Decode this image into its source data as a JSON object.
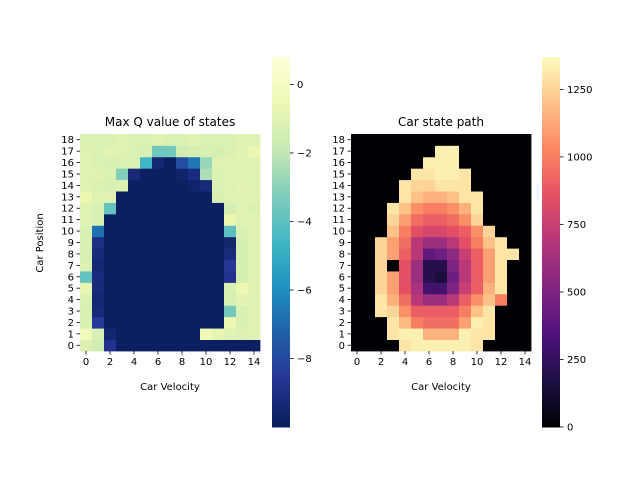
{
  "chart_data": [
    {
      "type": "heatmap",
      "title": "Max Q value of states",
      "xlabel": "Car Velocity",
      "ylabel": "Car Position",
      "x_ticks": [
        "0",
        "2",
        "4",
        "6",
        "8",
        "10",
        "12",
        "14"
      ],
      "y_ticks": [
        "0",
        "1",
        "2",
        "3",
        "4",
        "5",
        "6",
        "7",
        "8",
        "9",
        "10",
        "11",
        "12",
        "13",
        "14",
        "15",
        "16",
        "17",
        "18"
      ],
      "columns": 15,
      "rows": 19,
      "colormap": "YlGnBu",
      "colorbar": {
        "range": [
          -10,
          0.8
        ],
        "ticks": [
          0,
          -2,
          -4,
          -6,
          -8
        ],
        "tick_labels": [
          "0",
          "−2",
          "−4",
          "−6",
          "−8"
        ]
      },
      "values_note_row_order": "row index 0 = position 0 (bottom)",
      "values": [
        [
          -1.2,
          -1.5,
          -8.8,
          -9.8,
          -9.8,
          -9.8,
          -9.8,
          -9.8,
          -9.8,
          -9.8,
          -9.8,
          -9.8,
          -9.8,
          -9.8,
          -9.8
        ],
        [
          -0.2,
          -1.3,
          -9.5,
          -9.8,
          -9.8,
          -9.8,
          -9.8,
          -9.8,
          -9.8,
          -9.8,
          -0.3,
          -0.8,
          -1.0,
          -1.1,
          -1.0
        ],
        [
          -1.3,
          -8.5,
          -9.8,
          -9.8,
          -9.8,
          -9.8,
          -9.8,
          -9.8,
          -9.8,
          -9.8,
          -9.8,
          -9.8,
          -0.5,
          -1.3,
          -1.0
        ],
        [
          -1.3,
          -9.3,
          -9.8,
          -9.8,
          -9.8,
          -9.8,
          -9.8,
          -9.8,
          -9.8,
          -9.8,
          -9.8,
          -9.8,
          -3.5,
          -1.3,
          -1.0
        ],
        [
          -1.2,
          -9.4,
          -9.8,
          -9.8,
          -9.8,
          -9.8,
          -9.8,
          -9.8,
          -9.8,
          -9.8,
          -9.8,
          -9.8,
          -1.3,
          -0.9,
          -1.0
        ],
        [
          -0.8,
          -9.3,
          -9.8,
          -9.8,
          -9.8,
          -9.8,
          -9.8,
          -9.8,
          -9.8,
          -9.8,
          -9.8,
          -9.8,
          -1.3,
          -0.5,
          -1.1
        ],
        [
          -3.8,
          -9.2,
          -9.8,
          -9.8,
          -9.8,
          -9.8,
          -9.8,
          -9.8,
          -9.8,
          -9.8,
          -9.8,
          -9.8,
          -8.8,
          -1.4,
          -1.0
        ],
        [
          -1.2,
          -9.4,
          -9.8,
          -9.8,
          -9.8,
          -9.8,
          -9.8,
          -9.8,
          -9.8,
          -9.8,
          -9.8,
          -9.8,
          -8.6,
          -1.4,
          -1.0
        ],
        [
          -1.3,
          -9.3,
          -9.8,
          -9.8,
          -9.8,
          -9.8,
          -9.8,
          -9.8,
          -9.8,
          -9.8,
          -9.8,
          -9.8,
          -9.2,
          -1.4,
          -1.0
        ],
        [
          -1.3,
          -9.0,
          -9.8,
          -9.8,
          -9.8,
          -9.8,
          -9.8,
          -9.8,
          -9.8,
          -9.8,
          -9.8,
          -9.8,
          -9.5,
          -1.4,
          -1.0
        ],
        [
          -1.3,
          -6.8,
          -9.8,
          -9.8,
          -9.8,
          -9.8,
          -9.8,
          -9.8,
          -9.8,
          -9.8,
          -9.8,
          -9.8,
          -4.0,
          -1.3,
          -1.0
        ],
        [
          -1.0,
          -1.3,
          -9.8,
          -9.8,
          -9.8,
          -9.8,
          -9.8,
          -9.8,
          -9.8,
          -9.8,
          -9.8,
          -9.8,
          -0.6,
          -1.0,
          -1.0
        ],
        [
          -1.1,
          -1.3,
          -3.8,
          -9.8,
          -9.8,
          -9.8,
          -9.8,
          -9.8,
          -9.8,
          -9.8,
          -9.8,
          -9.8,
          -1.4,
          -1.0,
          -1.2
        ],
        [
          -0.6,
          -1.1,
          -1.1,
          -9.8,
          -9.8,
          -9.8,
          -9.8,
          -9.8,
          -9.8,
          -9.8,
          -9.8,
          -1.3,
          -1.1,
          -1.1,
          -1.0
        ],
        [
          -1.1,
          -1.2,
          -1.3,
          -1.2,
          -9.8,
          -9.8,
          -9.8,
          -9.8,
          -9.8,
          -9.6,
          -9.3,
          -1.2,
          -1.1,
          -0.9,
          -1.1
        ],
        [
          -1.0,
          -1.1,
          -1.2,
          -3.2,
          -9.3,
          -9.8,
          -9.8,
          -9.8,
          -9.6,
          -9.1,
          -2.4,
          -1.2,
          -1.0,
          -1.0,
          -1.1
        ],
        [
          -1.0,
          -1.2,
          -1.3,
          -1.2,
          -1.2,
          -4.6,
          -9.4,
          -9.8,
          -7.8,
          -6.6,
          -2.8,
          -1.1,
          -1.0,
          -1.0,
          -1.0
        ],
        [
          -1.1,
          -1.2,
          -0.9,
          -1.1,
          -1.2,
          -1.3,
          -3.6,
          -3.5,
          -1.5,
          -1.4,
          -1.3,
          -1.4,
          -1.2,
          -0.9,
          -0.6
        ],
        [
          -1.2,
          -1.2,
          -1.2,
          -1.1,
          -1.2,
          -1.2,
          -1.1,
          -1.2,
          -1.2,
          -1.1,
          -1.2,
          -1.2,
          -1.2,
          -1.1,
          -1.1
        ]
      ]
    },
    {
      "type": "heatmap",
      "title": "Car state path",
      "xlabel": "Car Velocity",
      "ylabel": "",
      "x_ticks": [
        "0",
        "2",
        "4",
        "6",
        "8",
        "10",
        "12",
        "14"
      ],
      "y_ticks": [
        "0",
        "1",
        "2",
        "3",
        "4",
        "5",
        "6",
        "7",
        "8",
        "9",
        "10",
        "11",
        "12",
        "13",
        "14",
        "15",
        "16",
        "17",
        "18"
      ],
      "columns": 15,
      "rows": 19,
      "colormap": "magma",
      "colorbar": {
        "range": [
          0,
          1370
        ],
        "ticks": [
          0,
          250,
          500,
          750,
          1000,
          1250
        ],
        "tick_labels": [
          "0",
          "250",
          "500",
          "750",
          "1000",
          "1250"
        ]
      },
      "values_note_row_order": "row index 0 = position 0 (bottom)",
      "values": [
        [
          0,
          0,
          0,
          0,
          1300,
          1330,
          1330,
          1330,
          1330,
          1330,
          1300,
          0,
          0,
          0,
          0
        ],
        [
          0,
          0,
          0,
          1300,
          1330,
          1330,
          1150,
          1150,
          1150,
          1330,
          1300,
          1300,
          0,
          0,
          0
        ],
        [
          0,
          0,
          0,
          1300,
          1180,
          1000,
          950,
          950,
          950,
          1100,
          1330,
          1300,
          0,
          0,
          0
        ],
        [
          0,
          0,
          1300,
          1250,
          1050,
          900,
          900,
          900,
          900,
          1000,
          1200,
          1300,
          0,
          0,
          0
        ],
        [
          0,
          0,
          1300,
          1150,
          950,
          700,
          600,
          600,
          700,
          900,
          1050,
          1200,
          1000,
          0,
          0
        ],
        [
          0,
          0,
          1250,
          1100,
          850,
          650,
          300,
          300,
          500,
          750,
          900,
          1150,
          1300,
          0,
          0
        ],
        [
          0,
          0,
          1250,
          1100,
          850,
          600,
          200,
          150,
          450,
          700,
          900,
          1100,
          1300,
          0,
          0
        ],
        [
          0,
          0,
          1250,
          0,
          850,
          600,
          200,
          200,
          500,
          700,
          900,
          1100,
          1300,
          0,
          0
        ],
        [
          0,
          0,
          1250,
          1100,
          900,
          700,
          400,
          450,
          550,
          750,
          900,
          1100,
          1300,
          1300,
          0
        ],
        [
          0,
          0,
          1250,
          1100,
          950,
          700,
          600,
          600,
          700,
          850,
          1000,
          1200,
          1300,
          0,
          0
        ],
        [
          0,
          0,
          0,
          1200,
          1000,
          850,
          800,
          800,
          850,
          900,
          1050,
          1250,
          0,
          0,
          0
        ],
        [
          0,
          0,
          0,
          1250,
          1100,
          950,
          900,
          900,
          950,
          1050,
          1250,
          0,
          0,
          0,
          0
        ],
        [
          0,
          0,
          0,
          1300,
          1200,
          1050,
          1000,
          1000,
          1050,
          1150,
          1300,
          0,
          0,
          0,
          0
        ],
        [
          0,
          0,
          0,
          0,
          1300,
          1200,
          1150,
          1150,
          1200,
          1300,
          1300,
          0,
          0,
          0,
          0
        ],
        [
          0,
          0,
          0,
          0,
          1300,
          1250,
          1250,
          1300,
          1300,
          1300,
          0,
          0,
          0,
          0,
          0
        ],
        [
          0,
          0,
          0,
          0,
          0,
          1300,
          1300,
          1330,
          1330,
          1300,
          0,
          0,
          0,
          0,
          0
        ],
        [
          0,
          0,
          0,
          0,
          0,
          0,
          1330,
          1330,
          1330,
          0,
          0,
          0,
          0,
          0,
          0
        ],
        [
          0,
          0,
          0,
          0,
          0,
          0,
          0,
          1330,
          1330,
          0,
          0,
          0,
          0,
          0,
          0
        ],
        [
          0,
          0,
          0,
          0,
          0,
          0,
          0,
          0,
          0,
          0,
          0,
          0,
          0,
          0,
          0
        ]
      ]
    }
  ]
}
